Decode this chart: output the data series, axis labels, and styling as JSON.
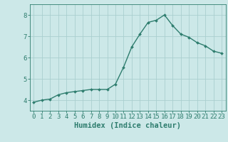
{
  "x": [
    0,
    1,
    2,
    3,
    4,
    5,
    6,
    7,
    8,
    9,
    10,
    11,
    12,
    13,
    14,
    15,
    16,
    17,
    18,
    19,
    20,
    21,
    22,
    23
  ],
  "y": [
    3.9,
    4.0,
    4.05,
    4.25,
    4.35,
    4.4,
    4.45,
    4.5,
    4.5,
    4.5,
    4.75,
    5.55,
    6.5,
    7.1,
    7.65,
    7.75,
    8.0,
    7.5,
    7.1,
    6.95,
    6.7,
    6.55,
    6.3,
    6.2
  ],
  "line_color": "#2e7d6e",
  "marker": "D",
  "marker_size": 2.0,
  "bg_color": "#cce8e8",
  "grid_color": "#aacfcf",
  "xlabel": "Humidex (Indice chaleur)",
  "ylim": [
    3.5,
    8.5
  ],
  "xlim": [
    -0.5,
    23.5
  ],
  "yticks": [
    4,
    5,
    6,
    7,
    8
  ],
  "xticks": [
    0,
    1,
    2,
    3,
    4,
    5,
    6,
    7,
    8,
    9,
    10,
    11,
    12,
    13,
    14,
    15,
    16,
    17,
    18,
    19,
    20,
    21,
    22,
    23
  ],
  "xlabel_fontsize": 7.5,
  "tick_fontsize": 6.5,
  "tick_color": "#2e7d6e",
  "spine_color": "#2e7d6e",
  "line_width": 1.0
}
